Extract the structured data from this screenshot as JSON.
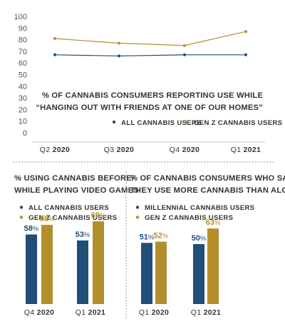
{
  "colors": {
    "blue": "#1f4e79",
    "gold": "#b38f2c",
    "axis": "#bfbfbf",
    "divider": "#9a9a9a"
  },
  "chart_data": [
    {
      "type": "line",
      "title_lines": [
        "% OF CANNABIS CONSUMERS REPORTING USE WHILE",
        "“HANGING OUT WITH FRIENDS AT ONE OF OUR HOMES”"
      ],
      "categories": [
        {
          "quarter": "Q2",
          "year": "2020"
        },
        {
          "quarter": "Q3",
          "year": "2020"
        },
        {
          "quarter": "Q4",
          "year": "2020"
        },
        {
          "quarter": "Q1",
          "year": "2021"
        }
      ],
      "yticks": [
        "0",
        "10",
        "20",
        "30",
        "40",
        "50",
        "60",
        "70",
        "80",
        "90",
        "100"
      ],
      "ylim": [
        0,
        100
      ],
      "legend_position": "bottom-right",
      "series": [
        {
          "name": "ALL CANNABIS USERS",
          "color_key": "blue",
          "values": [
            67,
            66,
            67,
            67
          ]
        },
        {
          "name": "GEN Z CANNABIS USERS",
          "color_key": "gold",
          "values": [
            81,
            77,
            75,
            87
          ]
        }
      ]
    },
    {
      "type": "bar",
      "title_lines": [
        "% USING CANNABIS BEFORE/",
        "WHILE PLAYING VIDEO GAMES"
      ],
      "categories": [
        {
          "quarter": "Q4",
          "year": "2020"
        },
        {
          "quarter": "Q1",
          "year": "2021"
        }
      ],
      "ylim": [
        0,
        75
      ],
      "legend_position": "top-left",
      "series": [
        {
          "name": "ALL CANNABIS USERS",
          "color_key": "blue",
          "values": [
            58,
            53
          ],
          "labels": [
            "58%",
            "53%"
          ]
        },
        {
          "name": "GEN Z CANNABIS USERS",
          "color_key": "gold",
          "values": [
            66,
            69
          ],
          "labels": [
            "66%",
            "69%"
          ]
        }
      ]
    },
    {
      "type": "bar",
      "title_lines": [
        "% OF CANNABIS CONSUMERS WHO SAY",
        "THEY USE MORE CANNABIS THAN ALCOHOL"
      ],
      "categories": [
        {
          "quarter": "Q1",
          "year": "2020"
        },
        {
          "quarter": "Q1",
          "year": "2021"
        }
      ],
      "ylim": [
        0,
        75
      ],
      "legend_position": "top-left",
      "series": [
        {
          "name": "MILLENNIAL CANNABIS USERS",
          "color_key": "blue",
          "values": [
            51,
            50
          ],
          "labels": [
            "51%",
            "50%"
          ]
        },
        {
          "name": "GEN Z CANNABIS USERS",
          "color_key": "gold",
          "values": [
            52,
            63
          ],
          "labels": [
            "52%",
            "63%"
          ]
        }
      ]
    }
  ]
}
